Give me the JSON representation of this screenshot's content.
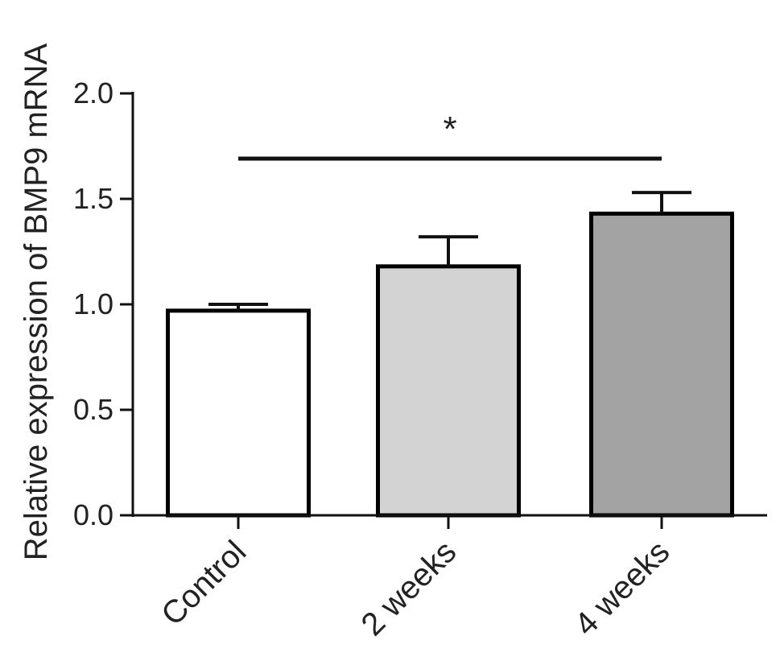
{
  "chart_data": {
    "type": "bar",
    "title": "",
    "xlabel": "",
    "ylabel": "Relative expression of BMP9 mRNA",
    "ylim": [
      0,
      2.0
    ],
    "yticks": [
      0.0,
      0.5,
      1.0,
      1.5,
      2.0
    ],
    "ytick_labels": [
      "0.0",
      "0.5",
      "1.0",
      "1.5",
      "2.0"
    ],
    "categories": [
      "Control",
      "2 weeks",
      "4 weeks"
    ],
    "values": [
      0.97,
      1.18,
      1.43
    ],
    "errors": [
      0.03,
      0.14,
      0.1
    ],
    "bar_colors": [
      "#ffffff",
      "#d3d3d3",
      "#a3a3a3"
    ],
    "bar_edge_color": "#000000",
    "significance": [
      {
        "from": "Control",
        "to": "4 weeks",
        "label": "*"
      }
    ],
    "grid": false,
    "legend": "none"
  }
}
